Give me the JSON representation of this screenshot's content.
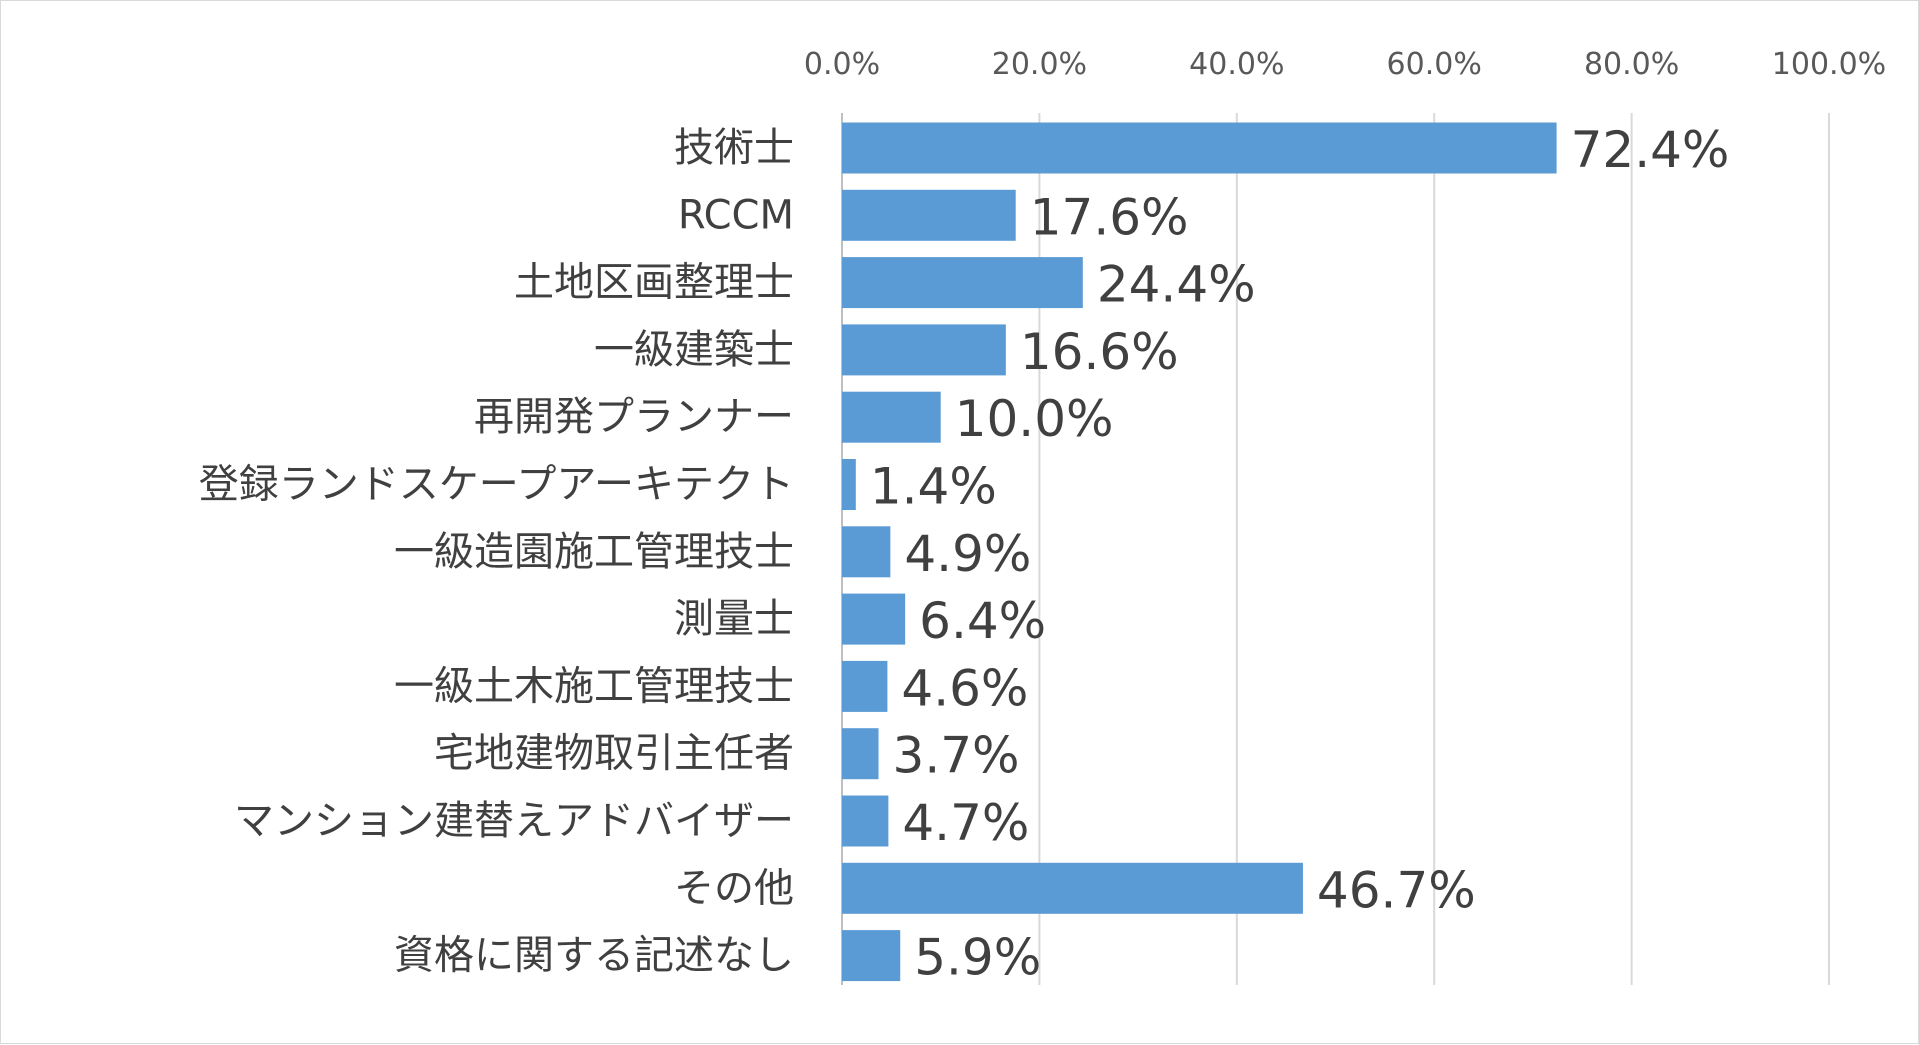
{
  "chart_data": {
    "type": "bar",
    "orientation": "horizontal",
    "title": "",
    "xlabel": "",
    "ylabel": "",
    "xlim": [
      0,
      100
    ],
    "x_ticks": [
      "0.0%",
      "20.0%",
      "40.0%",
      "60.0%",
      "80.0%",
      "100.0%"
    ],
    "x_axis_position": "top",
    "grid": true,
    "legend": "none",
    "bar_color": "#5b9bd5",
    "categories": [
      "技術士",
      "RCCM",
      "土地区画整理士",
      "一級建築士",
      "再開発プランナー",
      "登録ランドスケープアーキテクト",
      "一級造園施工管理技士",
      "測量士",
      "一級土木施工管理技士",
      "宅地建物取引主任者",
      "マンション建替えアドバイザー",
      "その他",
      "資格に関する記述なし"
    ],
    "values": [
      72.4,
      17.6,
      24.4,
      16.6,
      10.0,
      1.4,
      4.9,
      6.4,
      4.6,
      3.7,
      4.7,
      46.7,
      5.9
    ],
    "data_labels": [
      "72.4%",
      "17.6%",
      "24.4%",
      "16.6%",
      "10.0%",
      "1.4%",
      "4.9%",
      "6.4%",
      "4.6%",
      "3.7%",
      "4.7%",
      "46.7%",
      "5.9%"
    ]
  }
}
